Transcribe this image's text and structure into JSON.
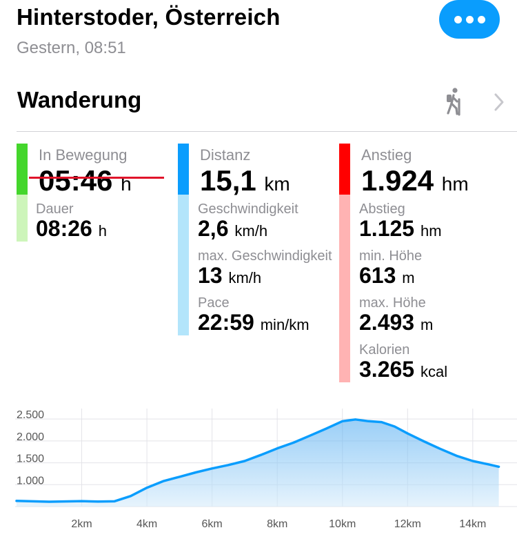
{
  "header": {
    "title": "Hinterstoder, Österreich",
    "subtitle": "Gestern, 08:51"
  },
  "activity": {
    "name": "Wanderung",
    "icon": "hiker-icon"
  },
  "colors": {
    "accent": "#0a9dfd",
    "moving_bar": "#44d62c",
    "moving_bar_light": "#cdf5ba",
    "distance_bar": "#0a9dfd",
    "distance_bar_light": "#b3e5fb",
    "ascent_bar": "#ff0000",
    "ascent_bar_light": "#ffb3b3",
    "strike": "#e0142a"
  },
  "stats": {
    "moving": {
      "label": "In Bewegung",
      "value": "05:46",
      "unit": "h"
    },
    "duration": {
      "label": "Dauer",
      "value": "08:26",
      "unit": "h"
    },
    "distance": {
      "label": "Distanz",
      "value": "15,1",
      "unit": "km"
    },
    "speed": {
      "label": "Geschwindigkeit",
      "value": "2,6",
      "unit": "km/h"
    },
    "max_speed": {
      "label": "max. Geschwindigkeit",
      "value": "13",
      "unit": "km/h"
    },
    "pace": {
      "label": "Pace",
      "value": "22:59",
      "unit": "min/km"
    },
    "ascent": {
      "label": "Anstieg",
      "value": "1.924",
      "unit": "hm"
    },
    "descent": {
      "label": "Abstieg",
      "value": "1.125",
      "unit": "hm"
    },
    "min_height": {
      "label": "min. Höhe",
      "value": "613",
      "unit": "m"
    },
    "max_height": {
      "label": "max. Höhe",
      "value": "2.493",
      "unit": "m"
    },
    "calories": {
      "label": "Kalorien",
      "value": "3.265",
      "unit": "kcal"
    }
  },
  "chart_data": {
    "type": "area",
    "title": "",
    "xlabel": "",
    "ylabel": "",
    "xlim": [
      0,
      14.85
    ],
    "ylim": [
      500,
      2550
    ],
    "grid": true,
    "y_ticks": [
      1000,
      1500,
      2000,
      2500
    ],
    "y_tick_labels": [
      "1.000",
      "1.500",
      "2.000",
      "2.500"
    ],
    "x_ticks": [
      2,
      4,
      6,
      8,
      10,
      12,
      14
    ],
    "x_tick_labels": [
      "2km",
      "4km",
      "6km",
      "8km",
      "10km",
      "12km",
      "14km"
    ],
    "series": [
      {
        "x": [
          0,
          1,
          2,
          2.5,
          3,
          3.5,
          4,
          4.5,
          5,
          5.5,
          6,
          6.5,
          7,
          7.5,
          8,
          8.5,
          9,
          9.5,
          10,
          10.4,
          10.8,
          11.2,
          11.6,
          12,
          12.5,
          13,
          13.5,
          14,
          14.5,
          14.8
        ],
        "y": [
          630,
          610,
          625,
          615,
          620,
          740,
          930,
          1080,
          1180,
          1280,
          1370,
          1450,
          1540,
          1680,
          1830,
          1960,
          2120,
          2280,
          2450,
          2490,
          2450,
          2430,
          2330,
          2170,
          1990,
          1820,
          1660,
          1540,
          1460,
          1410
        ]
      }
    ]
  }
}
